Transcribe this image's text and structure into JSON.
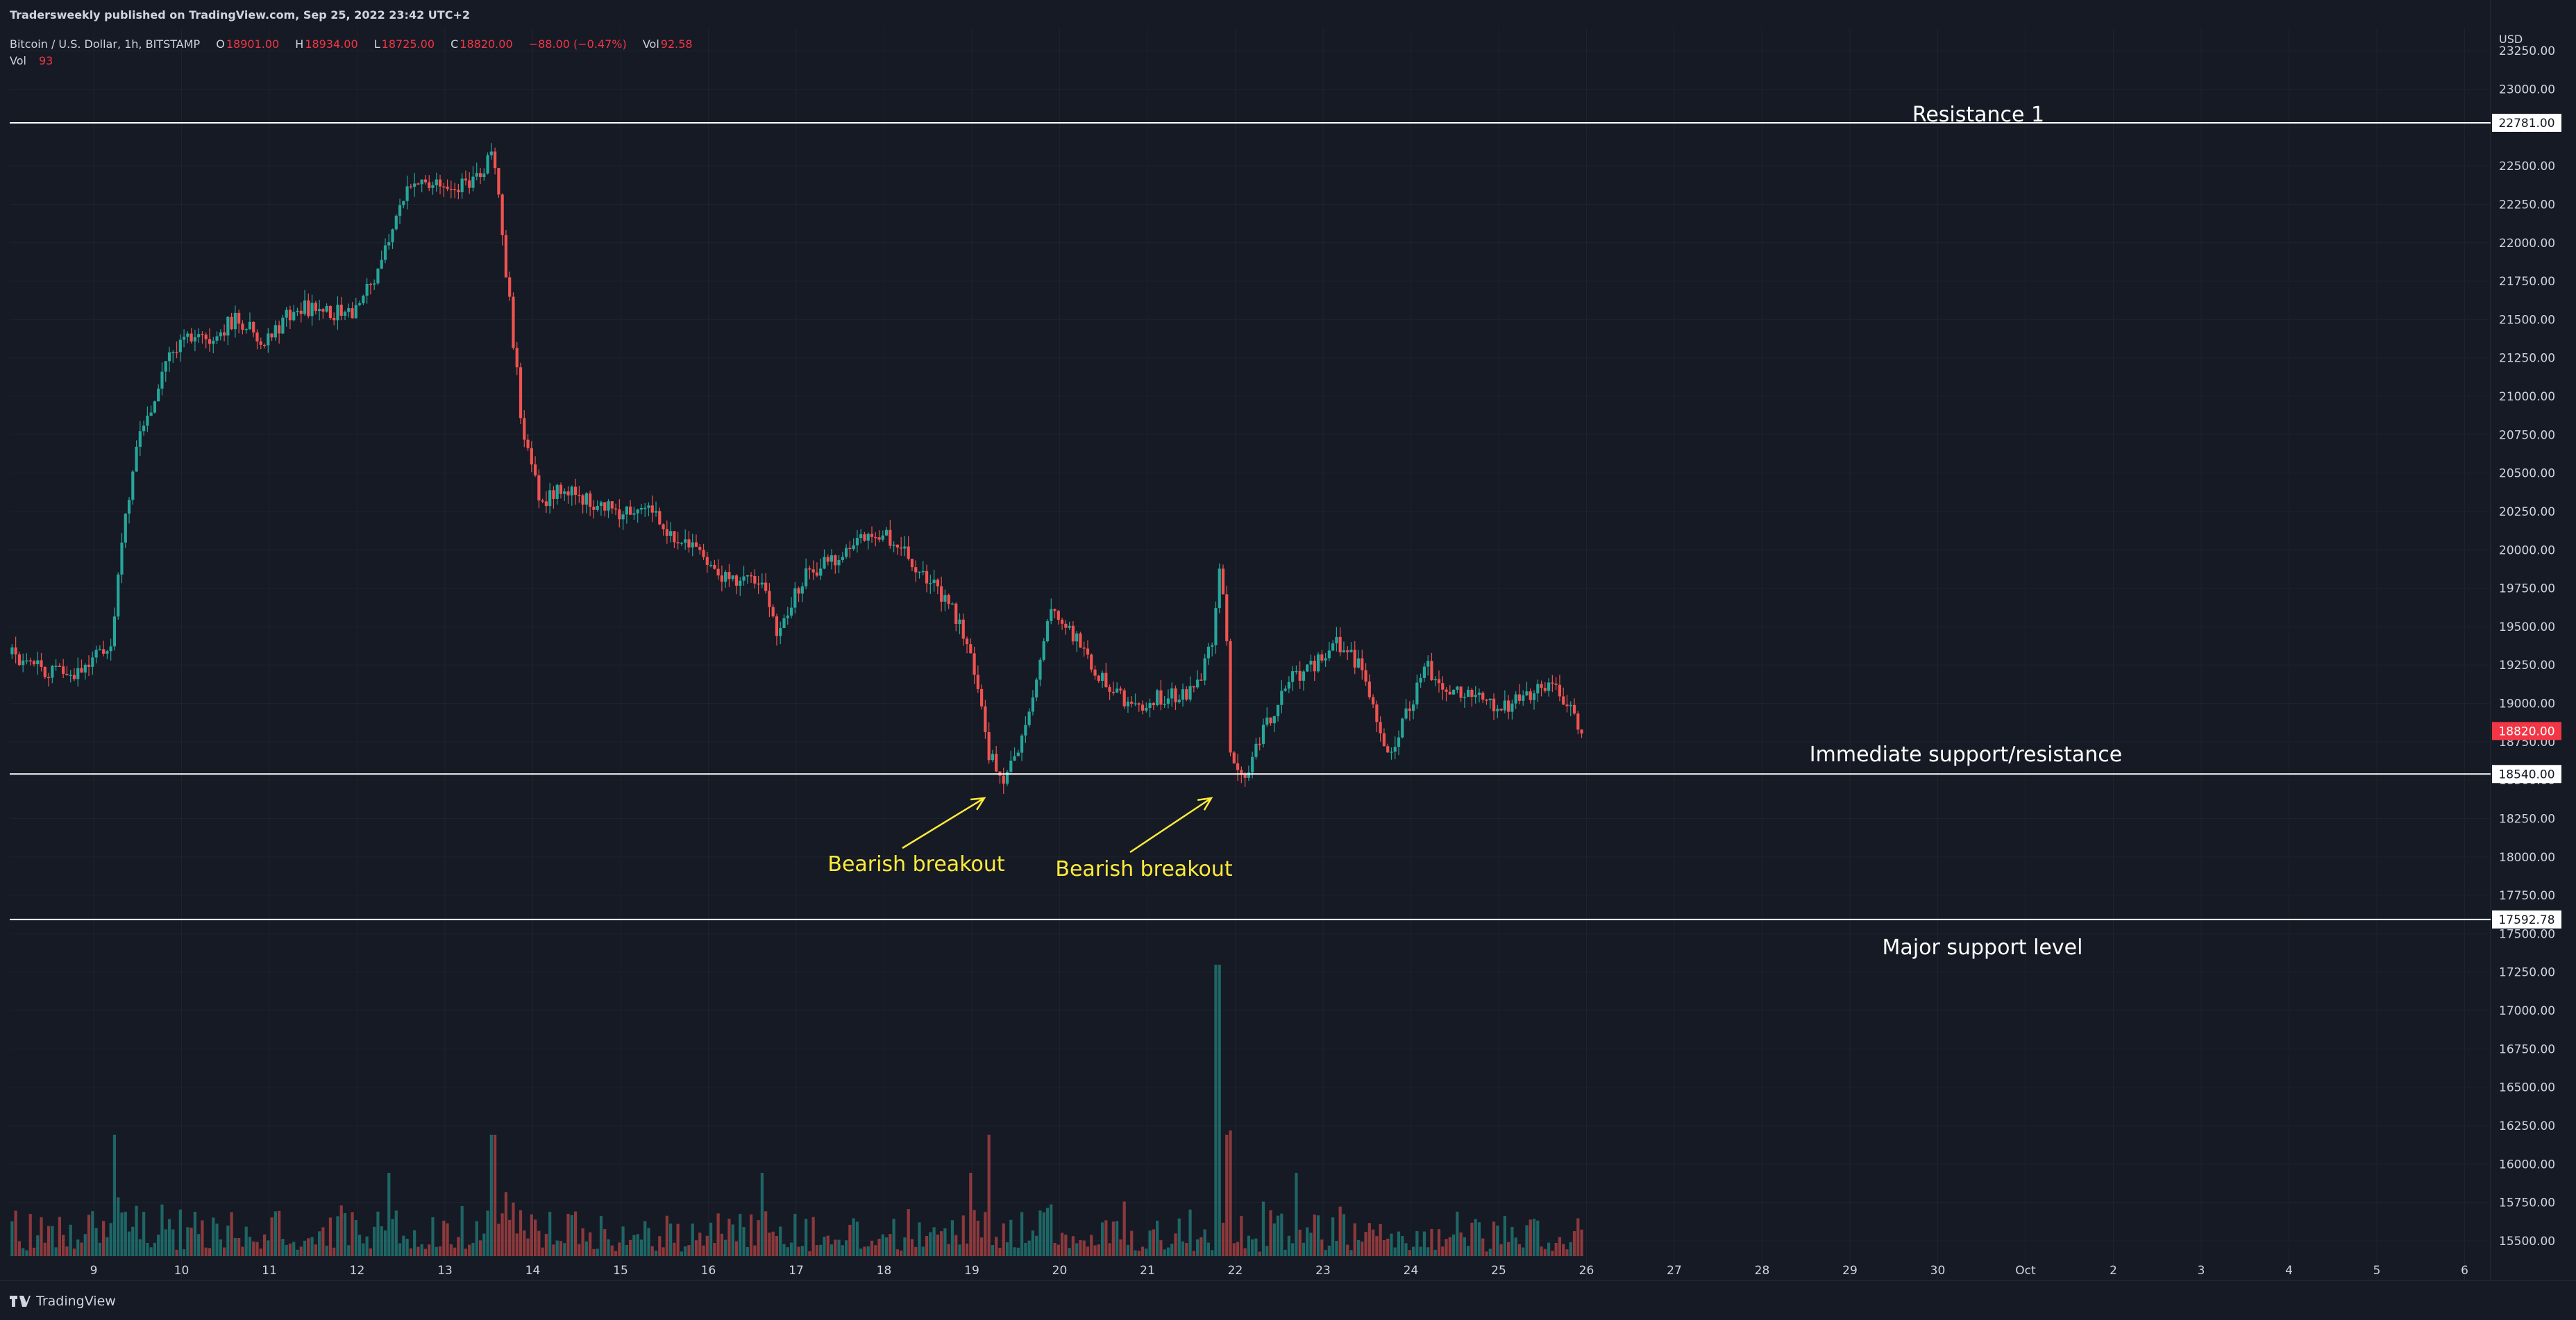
{
  "header": {
    "published": "Tradersweekly published on TradingView.com, Sep 25, 2022 23:42 UTC+2",
    "symbol": "Bitcoin / U.S. Dollar, 1h, BITSTAMP",
    "o_label": "O",
    "o_value": "18901.00",
    "h_label": "H",
    "h_value": "18934.00",
    "l_label": "L",
    "l_value": "18725.00",
    "c_label": "C",
    "c_value": "18820.00",
    "change": "−88.00 (−0.47%)",
    "vol_label": "Vol",
    "vol_value": "92.58",
    "vol_row_label": "Vol",
    "vol_row_value": "93"
  },
  "footer": {
    "brand": "TradingView"
  },
  "colors": {
    "background": "#161a25",
    "up": "#26a69a",
    "down": "#ef5350",
    "annotation": "#ffeb3b",
    "grid": "#1e222d",
    "text": "#d1d4dc",
    "price_tag": "#f23645"
  },
  "chart_data": {
    "type": "candlestick",
    "title": "Bitcoin / U.S. Dollar, 1h, BITSTAMP",
    "currency": "USD",
    "ylim": [
      15400,
      23400
    ],
    "y_ticks": [
      "23250.00",
      "23000.00",
      "22750.00",
      "22500.00",
      "22250.00",
      "22000.00",
      "21750.00",
      "21500.00",
      "21250.00",
      "21000.00",
      "20750.00",
      "20500.00",
      "20250.00",
      "20000.00",
      "19750.00",
      "19500.00",
      "19250.00",
      "19000.00",
      "18750.00",
      "18500.00",
      "18250.00",
      "18000.00",
      "17750.00",
      "17500.00",
      "17250.00",
      "17000.00",
      "16750.00",
      "16500.00",
      "16250.00",
      "16000.00",
      "15750.00",
      "15500.00"
    ],
    "x_ticks": [
      "9",
      "10",
      "11",
      "12",
      "13",
      "14",
      "15",
      "16",
      "17",
      "18",
      "19",
      "20",
      "21",
      "22",
      "23",
      "24",
      "25",
      "26",
      "27",
      "28",
      "29",
      "30",
      "Oct",
      "2",
      "3",
      "4",
      "5",
      "6"
    ],
    "x_range_days": [
      8.07,
      26.9
    ],
    "last_price": 18820.0,
    "last_price_label": "18820.00",
    "price_series_anchors": [
      [
        8.07,
        19320
      ],
      [
        8.4,
        19230
      ],
      [
        8.7,
        19180
      ],
      [
        9.0,
        19300
      ],
      [
        9.2,
        19360
      ],
      [
        9.3,
        19950
      ],
      [
        9.5,
        20700
      ],
      [
        9.75,
        21100
      ],
      [
        10.0,
        21400
      ],
      [
        10.3,
        21350
      ],
      [
        10.6,
        21500
      ],
      [
        11.0,
        21350
      ],
      [
        11.3,
        21600
      ],
      [
        11.6,
        21550
      ],
      [
        12.0,
        21550
      ],
      [
        12.3,
        21900
      ],
      [
        12.6,
        22400
      ],
      [
        13.0,
        22350
      ],
      [
        13.3,
        22400
      ],
      [
        13.45,
        22500
      ],
      [
        13.55,
        22620
      ],
      [
        13.7,
        21800
      ],
      [
        13.9,
        20700
      ],
      [
        14.1,
        20300
      ],
      [
        14.3,
        20400
      ],
      [
        14.7,
        20300
      ],
      [
        15.0,
        20250
      ],
      [
        15.3,
        20280
      ],
      [
        15.6,
        20100
      ],
      [
        15.9,
        20000
      ],
      [
        16.2,
        19800
      ],
      [
        16.6,
        19800
      ],
      [
        16.8,
        19450
      ],
      [
        17.1,
        19850
      ],
      [
        17.5,
        19950
      ],
      [
        17.8,
        20100
      ],
      [
        18.0,
        20100
      ],
      [
        18.2,
        20000
      ],
      [
        18.5,
        19800
      ],
      [
        18.8,
        19600
      ],
      [
        19.0,
        19300
      ],
      [
        19.2,
        18650
      ],
      [
        19.35,
        18520
      ],
      [
        19.5,
        18650
      ],
      [
        19.7,
        19050
      ],
      [
        19.9,
        19600
      ],
      [
        20.1,
        19500
      ],
      [
        20.3,
        19300
      ],
      [
        20.6,
        19050
      ],
      [
        20.9,
        19000
      ],
      [
        21.2,
        19050
      ],
      [
        21.4,
        19050
      ],
      [
        21.6,
        19150
      ],
      [
        21.75,
        19450
      ],
      [
        21.82,
        19850
      ],
      [
        21.9,
        19500
      ],
      [
        21.95,
        18600
      ],
      [
        22.1,
        18450
      ],
      [
        22.3,
        18800
      ],
      [
        22.6,
        19150
      ],
      [
        22.9,
        19250
      ],
      [
        23.1,
        19400
      ],
      [
        23.3,
        19350
      ],
      [
        23.5,
        19150
      ],
      [
        23.7,
        18750
      ],
      [
        23.8,
        18700
      ],
      [
        24.0,
        19000
      ],
      [
        24.15,
        19250
      ],
      [
        24.4,
        19100
      ],
      [
        24.7,
        19050
      ],
      [
        25.0,
        18950
      ],
      [
        25.3,
        19050
      ],
      [
        25.6,
        19100
      ],
      [
        25.8,
        19000
      ],
      [
        25.95,
        18820
      ]
    ],
    "volume_spikes": [
      [
        9.23,
        "high"
      ],
      [
        13.55,
        "high"
      ],
      [
        19.2,
        "high"
      ],
      [
        21.8,
        "max"
      ],
      [
        21.9,
        "high"
      ],
      [
        18.98,
        "medium"
      ],
      [
        16.6,
        "medium"
      ],
      [
        12.35,
        "medium"
      ],
      [
        22.7,
        "medium"
      ]
    ],
    "horizontal_levels": [
      {
        "name": "Resistance 1",
        "value": 22781.0,
        "label": "22781.00"
      },
      {
        "name": "Immediate support/resistance",
        "value": 18540.0,
        "label": "18540.00"
      },
      {
        "name": "Major support level",
        "value": 17592.78,
        "label": "17592.78"
      }
    ],
    "annotations": [
      {
        "text": "Bearish breakout",
        "day": 19.1,
        "price": 18530
      },
      {
        "text": "Bearish breakout",
        "day": 21.7,
        "price": 18530
      }
    ]
  }
}
